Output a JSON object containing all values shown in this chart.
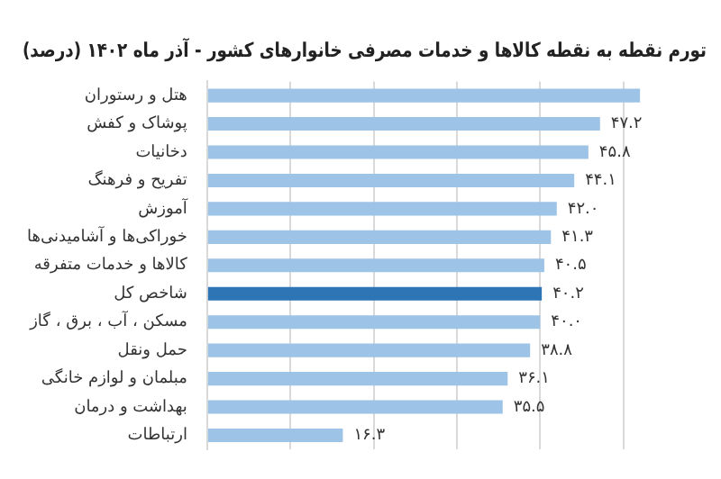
{
  "chart_data": {
    "type": "bar",
    "orientation": "horizontal",
    "title": "تورم نقطه به نقطه کالاها و خدمات مصرفی خانوارهای کشور - آذر ماه ۱۴۰۲ (درصد)",
    "categories": [
      "هتل و رستوران",
      "پوشاک و کفش",
      "دخانیات",
      "تفریح و فرهنگ",
      "آموزش",
      "خوراکی‌ها و آشامیدنی‌ها",
      "کالاها و خدمات متفرقه",
      "شاخص کل",
      "مسکن ، آب ، برق ، گاز",
      "حمل ونقل",
      "مبلمان و لوازم خانگی",
      "بهداشت و درمان",
      "ارتباطات"
    ],
    "values": [
      52,
      47.2,
      45.8,
      44.1,
      42.0,
      41.3,
      40.5,
      40.2,
      40.0,
      38.8,
      36.1,
      35.5,
      16.3
    ],
    "value_labels": [
      null,
      "۴۷.۲",
      "۴۵.۸",
      "۴۴.۱",
      "۴۲.۰",
      "۴۱.۳",
      "۴۰.۵",
      "۴۰.۲",
      "۴۰.۰",
      "۳۸.۸",
      "۳۶.۱",
      "۳۵.۵",
      "۱۶.۳"
    ],
    "colors": [
      "#9dc3e6",
      "#9dc3e6",
      "#9dc3e6",
      "#9dc3e6",
      "#9dc3e6",
      "#9dc3e6",
      "#9dc3e6",
      "#2e75b6",
      "#9dc3e6",
      "#9dc3e6",
      "#9dc3e6",
      "#9dc3e6",
      "#9dc3e6"
    ],
    "xticks": [
      {
        "value": 0,
        "label": null
      },
      {
        "value": 10,
        "label": null
      },
      {
        "value": 20,
        "label": null
      },
      {
        "value": 30,
        "label": null
      },
      {
        "value": 40,
        "label": null
      },
      {
        "value": 50,
        "label": null
      }
    ],
    "grid": "x",
    "legend": false,
    "tick_labels": "y"
  }
}
